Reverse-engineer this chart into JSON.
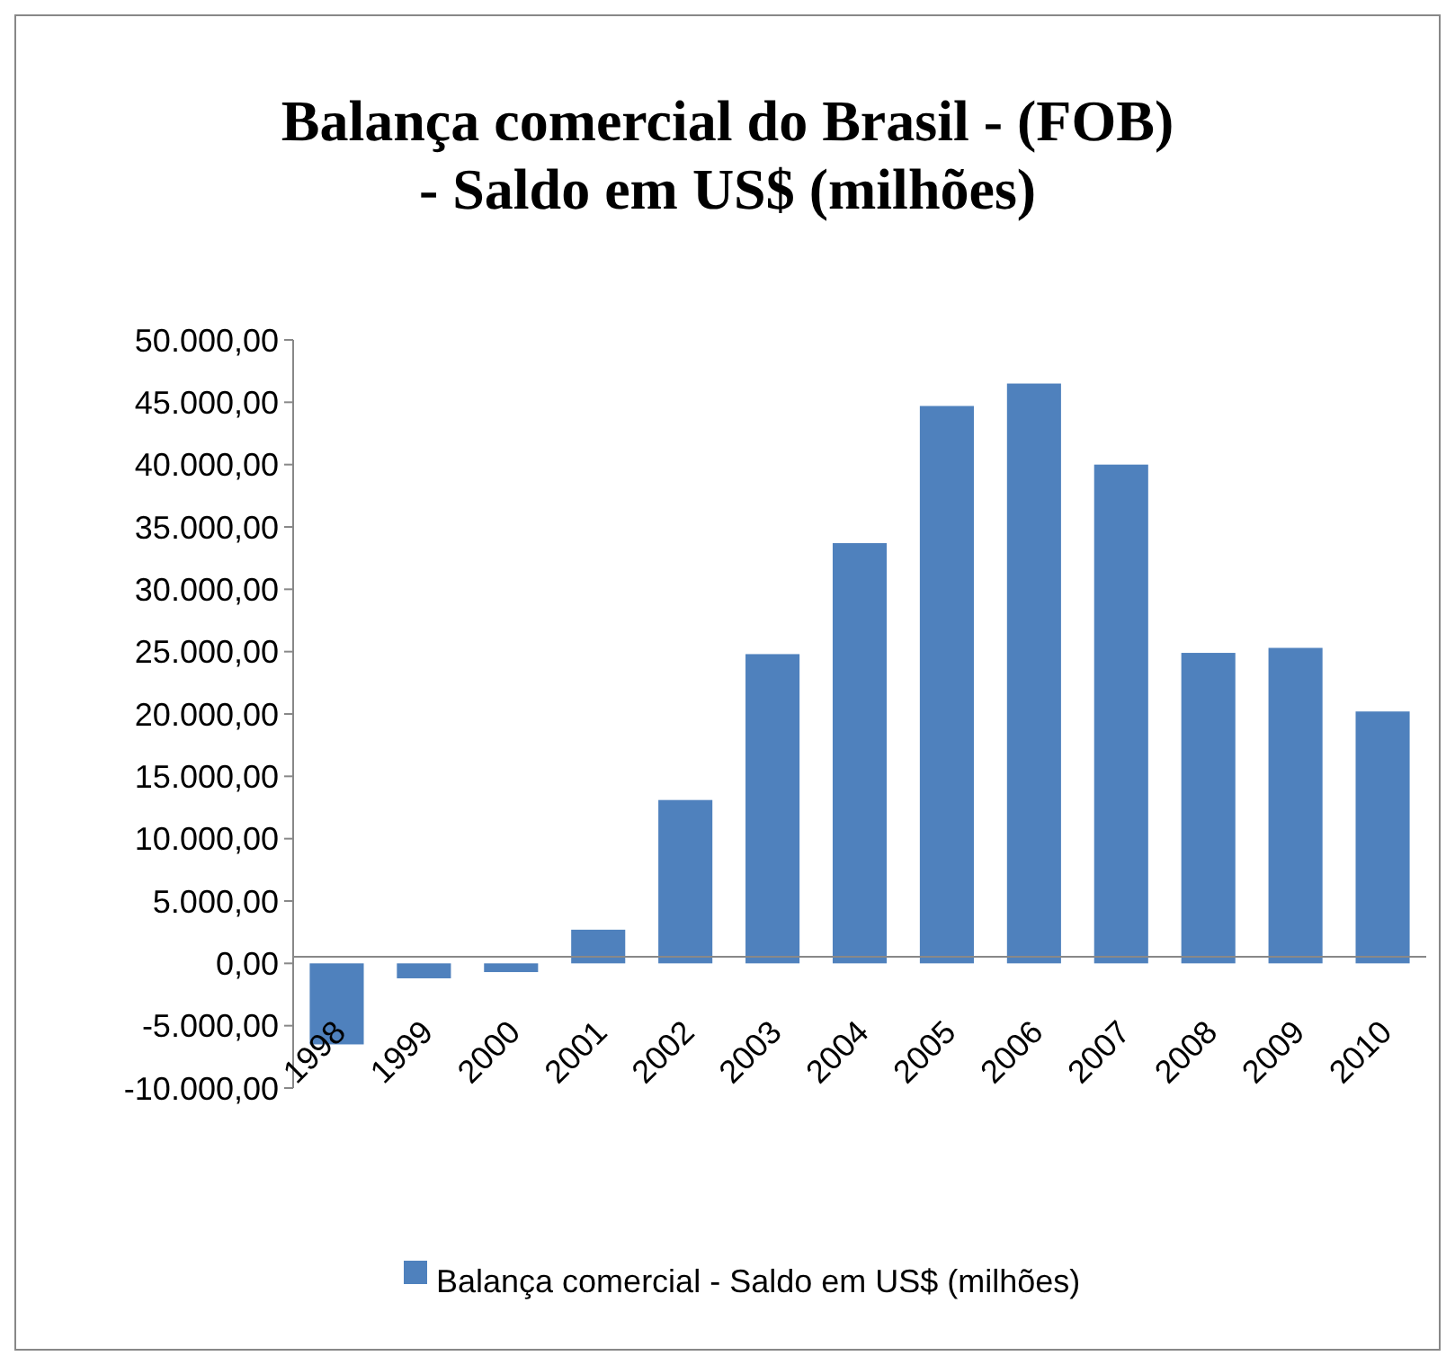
{
  "chart_data": {
    "type": "bar",
    "title": "Balança comercial do Brasil - (FOB) - Saldo em US$ (milhões)",
    "categories": [
      "1998",
      "1999",
      "2000",
      "2001",
      "2002",
      "2003",
      "2004",
      "2005",
      "2006",
      "2007",
      "2008",
      "2009",
      "2010"
    ],
    "series": [
      {
        "name": "Balança comercial - Saldo em US$ (milhões)",
        "color": "#4f81bd",
        "values": [
          -6500,
          -1200,
          -700,
          2700,
          13100,
          24800,
          33700,
          44700,
          46500,
          40000,
          24900,
          25300,
          20200
        ]
      }
    ],
    "ylim": [
      -10000,
      50000
    ],
    "yticks": [
      {
        "value": -10000,
        "label": "-10.000,00"
      },
      {
        "value": -5000,
        "label": "-5.000,00"
      },
      {
        "value": 0,
        "label": "0,00"
      },
      {
        "value": 5000,
        "label": "5.000,00"
      },
      {
        "value": 10000,
        "label": "10.000,00"
      },
      {
        "value": 15000,
        "label": "15.000,00"
      },
      {
        "value": 20000,
        "label": "20.000,00"
      },
      {
        "value": 25000,
        "label": "25.000,00"
      },
      {
        "value": 30000,
        "label": "30.000,00"
      },
      {
        "value": 35000,
        "label": "35.000,00"
      },
      {
        "value": 40000,
        "label": "40.000,00"
      },
      {
        "value": 45000,
        "label": "45.000,00"
      },
      {
        "value": 50000,
        "label": "50.000,00"
      }
    ],
    "grid": false,
    "legend": "bottom"
  }
}
